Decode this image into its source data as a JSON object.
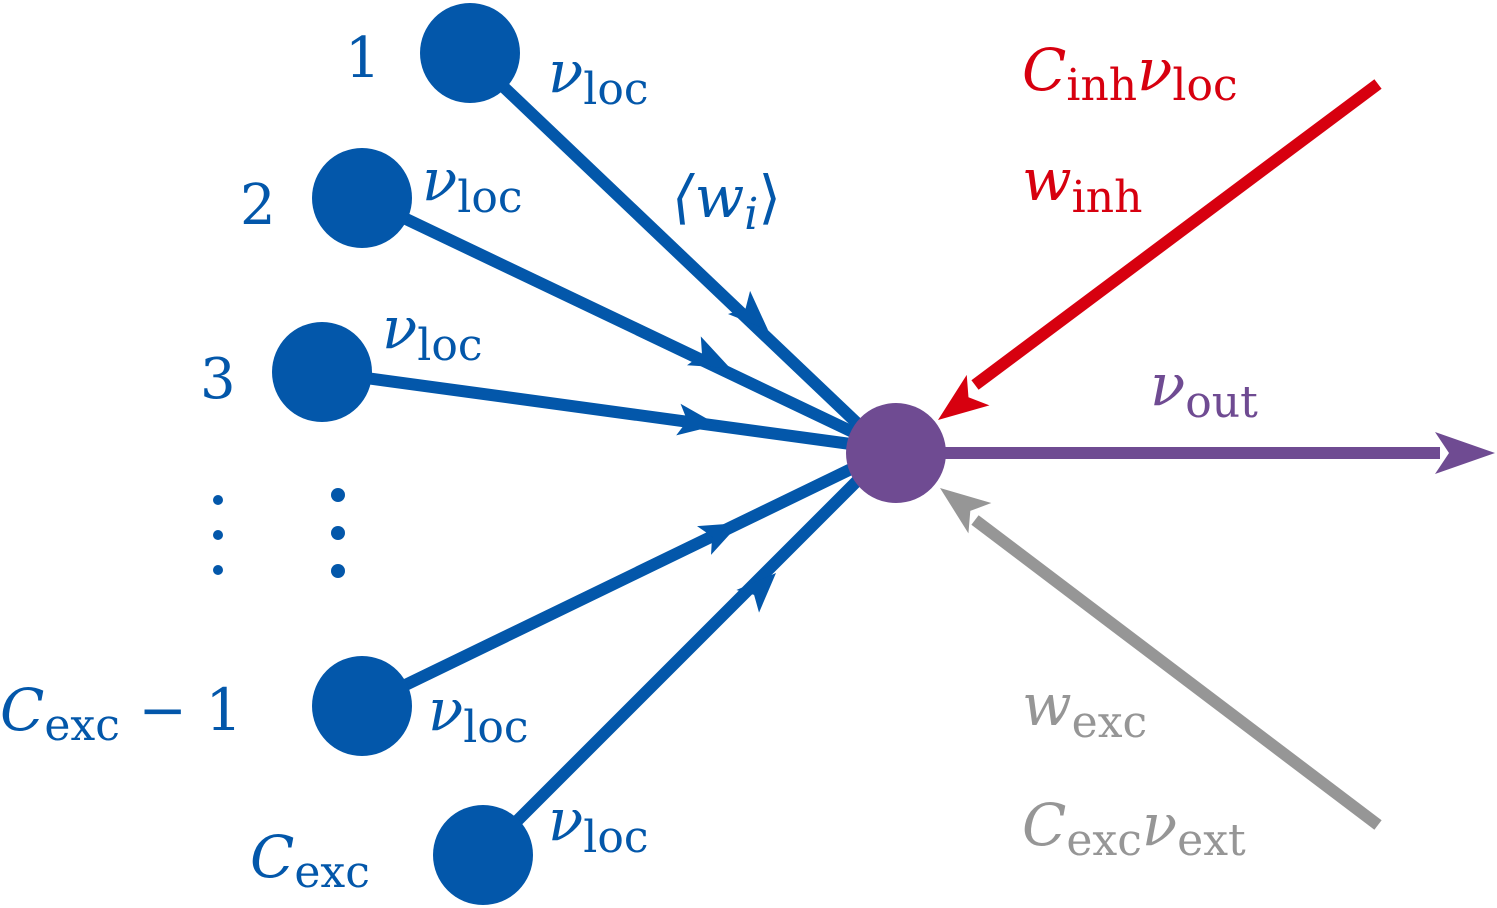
{
  "colors": {
    "excitatory_local": "#0357aa",
    "inhibitory": "#d7000f",
    "output": "#6f4b92",
    "external": "#969696"
  },
  "local_inputs": {
    "label_1": "1",
    "label_2": "2",
    "label_3": "3",
    "label_n_minus_1_var": "C",
    "label_n_minus_1_sub": "exc",
    "label_n_minus_1_tail": " − 1",
    "label_n_var": "C",
    "label_n_sub": "exc",
    "rate_symbol": "ν",
    "rate_sub": "loc",
    "weight_label": "⟨w",
    "weight_sub": "i",
    "weight_close": "⟩"
  },
  "inhibitory_input": {
    "rate_var": "C",
    "rate_var_sub": "inh",
    "rate_symbol": "ν",
    "rate_sub": "loc",
    "weight_symbol": "w",
    "weight_sub": "inh"
  },
  "output": {
    "rate_symbol": "ν",
    "rate_sub": "out"
  },
  "external_input": {
    "weight_symbol": "w",
    "weight_sub": "exc",
    "rate_var": "C",
    "rate_var_sub": "exc",
    "rate_symbol": "ν",
    "rate_sub": "ext"
  }
}
